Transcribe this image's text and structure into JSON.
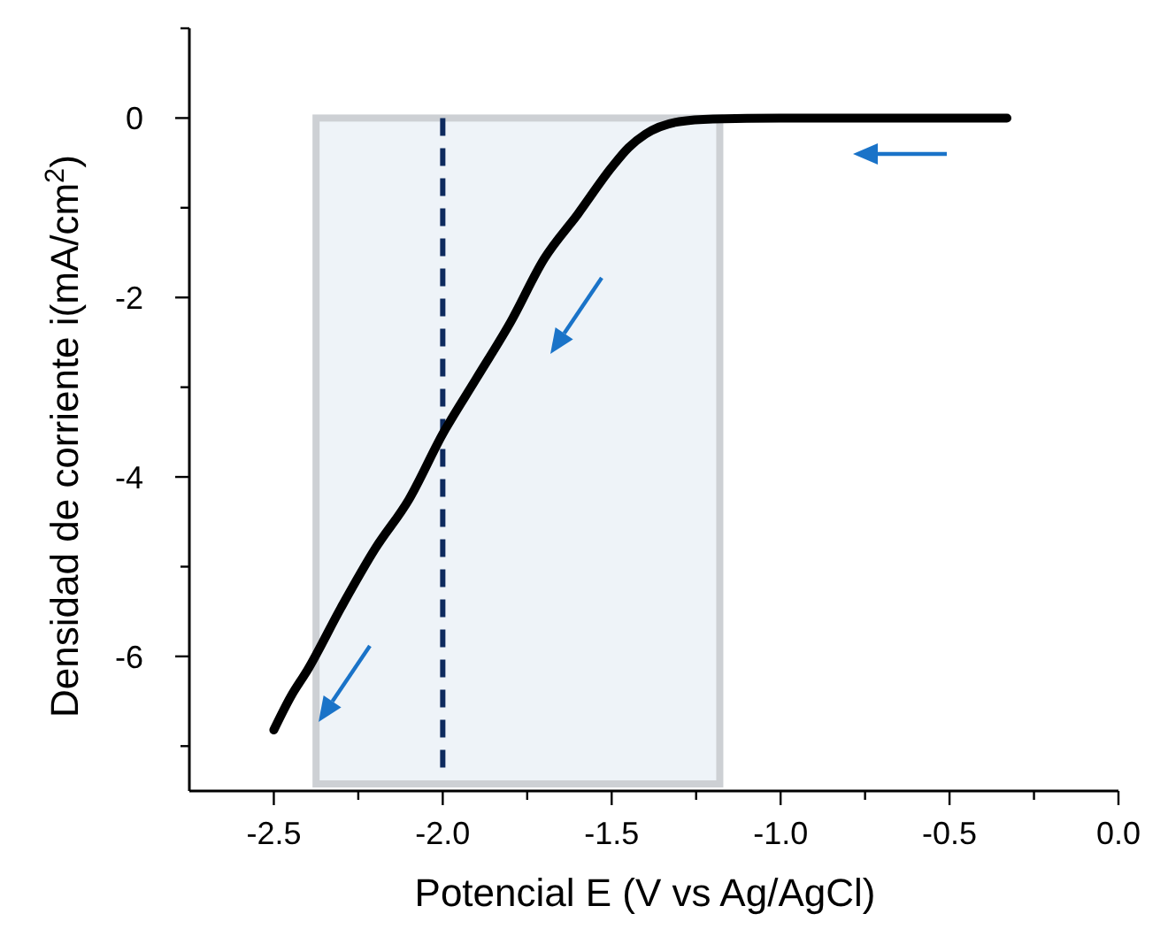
{
  "chart_data": {
    "type": "line",
    "xlabel": "Potencial E (V vs Ag/AgCl)",
    "ylabel": "Densidad de corriente i(mA/cm$^{2}$)",
    "x": [
      -2.5,
      -2.45,
      -2.4,
      -2.3,
      -2.2,
      -2.1,
      -2.0,
      -1.9,
      -1.8,
      -1.7,
      -1.6,
      -1.5,
      -1.45,
      -1.4,
      -1.3,
      -1.2,
      -1.0,
      -0.33
    ],
    "series": [
      {
        "color": "#000000",
        "values": [
          -6.82,
          -6.45,
          -6.15,
          -5.45,
          -4.8,
          -4.25,
          -3.52,
          -2.9,
          -2.28,
          -1.57,
          -1.07,
          -0.55,
          -0.33,
          -0.18,
          -0.04,
          -0.01,
          0,
          0
        ]
      }
    ],
    "xlim": [
      -2.75,
      0
    ],
    "ylim": [
      -7.5,
      1
    ],
    "xticks": [
      {
        "value": -2.5,
        "label": "-2.5"
      },
      {
        "value": -2.25,
        "label": null
      },
      {
        "value": -2.0,
        "label": "-2.0"
      },
      {
        "value": -1.75,
        "label": null
      },
      {
        "value": -1.5,
        "label": "-1.5"
      },
      {
        "value": -1.25,
        "label": null
      },
      {
        "value": -1.0,
        "label": "-1.0"
      },
      {
        "value": -0.75,
        "label": null
      },
      {
        "value": -0.5,
        "label": "-0.5"
      },
      {
        "value": -0.25,
        "label": null
      },
      {
        "value": 0,
        "label": "0.0"
      }
    ],
    "yticks": [
      {
        "value": 1,
        "label": null
      },
      0,
      {
        "value": -1,
        "label": null
      },
      -2,
      {
        "value": -3,
        "label": null
      },
      -4,
      {
        "value": -5,
        "label": null
      },
      -6,
      {
        "value": -7,
        "label": null
      }
    ],
    "ref_lines": [
      {
        "axis": "x",
        "value": -2.0,
        "color": "#0d2a5e",
        "line_style": "dashed"
      }
    ],
    "bands": [
      {
        "axis": "x",
        "from": -2.375,
        "to": -1.18,
        "color": "#eef3f8"
      }
    ],
    "line_style": "solid",
    "marker": "none",
    "grid": false
  }
}
